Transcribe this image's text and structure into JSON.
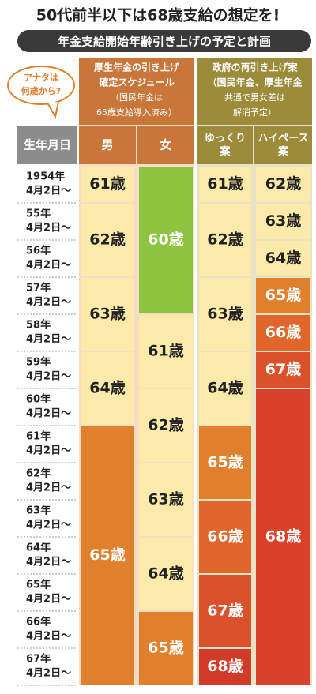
{
  "header": {
    "title": "50代前半以下は68歳支給の想定を!",
    "subtitle": "年金支給開始年齢引き上げの予定と計画",
    "bubble": [
      "アナタは",
      "何歳から?"
    ]
  },
  "groups": [
    {
      "lines": [
        "厚生年金の引き上げ",
        "確定スケジュール",
        "（国民年金は",
        "65歳支給導入済み）"
      ],
      "color": "#c8763a"
    },
    {
      "lines": [
        "政府の再引き上げ案",
        "（国民年金、厚生年金",
        "共通で男女差は",
        "解消予定）"
      ],
      "color": "#9d8b3c"
    }
  ],
  "columns": [
    {
      "label": [
        "生年月日"
      ],
      "color": "#8c8c8c"
    },
    {
      "label": [
        "男"
      ],
      "color": "#c8763a"
    },
    {
      "label": [
        "女"
      ],
      "color": "#c8763a"
    },
    {
      "label": [
        "ゆっくり",
        "案"
      ],
      "color": "#9d8b3c"
    },
    {
      "label": [
        "ハイペース",
        "案"
      ],
      "color": "#9d8b3c"
    }
  ],
  "rows": [
    {
      "year": "1954年",
      "date": "4月2日〜"
    },
    {
      "year": "55年",
      "date": "4月2日〜"
    },
    {
      "year": "56年",
      "date": "4月2日〜"
    },
    {
      "year": "57年",
      "date": "4月2日〜"
    },
    {
      "year": "58年",
      "date": "4月2日〜"
    },
    {
      "year": "59年",
      "date": "4月2日〜"
    },
    {
      "year": "60年",
      "date": "4月2日〜"
    },
    {
      "year": "61年",
      "date": "4月2日〜"
    },
    {
      "year": "62年",
      "date": "4月2日〜"
    },
    {
      "year": "63年",
      "date": "4月2日〜"
    },
    {
      "year": "64年",
      "date": "4月2日〜"
    },
    {
      "year": "65年",
      "date": "4月2日〜"
    },
    {
      "year": "66年",
      "date": "4月2日〜"
    },
    {
      "year": "67年",
      "date": "4月2日〜"
    }
  ],
  "cells": [
    [
      {
        "label": "61歳",
        "color": "#fbeaa9"
      },
      {
        "label": "62歳",
        "color": "#fbeaa9"
      },
      null,
      {
        "label": "63歳",
        "color": "#fbeaa9"
      },
      null,
      {
        "label": "64歳",
        "color": "#fbeaa9"
      },
      null,
      {
        "label": "65歳",
        "color": "#e07f2c"
      },
      null,
      null,
      null,
      null,
      null,
      null
    ],
    [
      {
        "label": "60歳",
        "color": "#8dc43f"
      },
      null,
      null,
      null,
      {
        "label": "61歳",
        "color": "#fbeaa9"
      },
      null,
      {
        "label": "62歳",
        "color": "#fbeaa9"
      },
      null,
      {
        "label": "63歳",
        "color": "#fbeaa9"
      },
      null,
      {
        "label": "64歳",
        "color": "#fbeaa9"
      },
      null,
      {
        "label": "65歳",
        "color": "#e07f2c"
      },
      null
    ],
    [
      {
        "label": "61歳",
        "color": "#fbeaa9"
      },
      {
        "label": "62歳",
        "color": "#fbeaa9"
      },
      null,
      {
        "label": "63歳",
        "color": "#fbeaa9"
      },
      null,
      {
        "label": "64歳",
        "color": "#fbeaa9"
      },
      null,
      {
        "label": "65歳",
        "color": "#e07f2c"
      },
      null,
      {
        "label": "66歳",
        "color": "#e0662c"
      },
      null,
      {
        "label": "67歳",
        "color": "#da512b"
      },
      null,
      {
        "label": "68歳",
        "color": "#d23a2a"
      }
    ],
    [
      {
        "label": "62歳",
        "color": "#fbeaa9"
      },
      {
        "label": "63歳",
        "color": "#fbeaa9"
      },
      {
        "label": "64歳",
        "color": "#fbeaa9"
      },
      {
        "label": "65歳",
        "color": "#e07f2c"
      },
      {
        "label": "66歳",
        "color": "#e0662c"
      },
      {
        "label": "67歳",
        "color": "#da512b"
      },
      {
        "label": "68歳",
        "color": "#d9412b"
      },
      null,
      null,
      null,
      null,
      null,
      null,
      null
    ]
  ]
}
